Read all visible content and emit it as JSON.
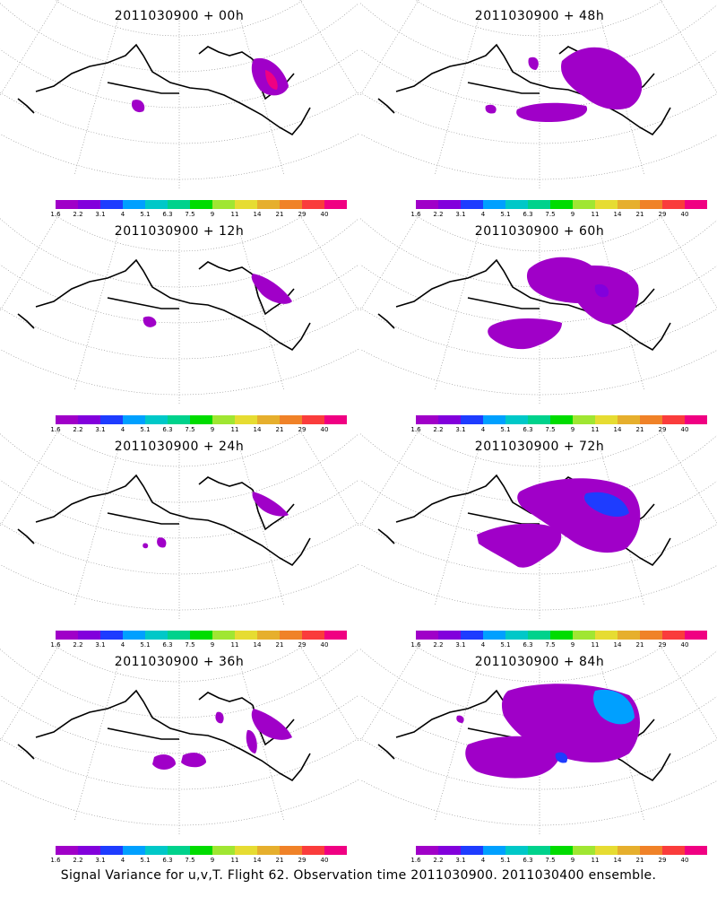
{
  "panels": [
    {
      "title": "2011030900 + 00h",
      "colorbar_ticks": [
        "1.6",
        "2.2",
        "3.1",
        "4",
        "5.1",
        "6.3",
        "7.5",
        "9",
        "11",
        "14",
        "21",
        "29",
        "40"
      ]
    },
    {
      "title": "2011030900 + 48h",
      "colorbar_ticks": [
        "1.6",
        "2.2",
        "3.1",
        "4",
        "5.1",
        "6.3",
        "7.5",
        "9",
        "11",
        "14",
        "21",
        "29",
        "40"
      ]
    },
    {
      "title": "2011030900 + 12h",
      "colorbar_ticks": [
        "1.6",
        "2.2",
        "3.1",
        "4",
        "5.1",
        "6.3",
        "7.5",
        "9",
        "11",
        "14",
        "21",
        "29",
        "40"
      ]
    },
    {
      "title": "2011030900 + 60h",
      "colorbar_ticks": [
        "1.6",
        "2.2",
        "3.1",
        "4",
        "5.1",
        "6.3",
        "7.5",
        "9",
        "11",
        "14",
        "21",
        "29",
        "40"
      ]
    },
    {
      "title": "2011030900 + 24h",
      "colorbar_ticks": [
        "1.6",
        "2.2",
        "3.1",
        "4",
        "5.1",
        "6.3",
        "7.5",
        "9",
        "11",
        "14",
        "21",
        "29",
        "40"
      ]
    },
    {
      "title": "2011030900 + 72h",
      "colorbar_ticks": [
        "1.6",
        "2.2",
        "3.1",
        "4",
        "5.1",
        "6.3",
        "7.5",
        "9",
        "11",
        "14",
        "21",
        "29",
        "40"
      ]
    },
    {
      "title": "2011030900 + 36h",
      "colorbar_ticks": [
        "1.6",
        "2.2",
        "3.1",
        "4",
        "5.1",
        "6.3",
        "7.5",
        "9",
        "11",
        "14",
        "21",
        "29",
        "40"
      ]
    },
    {
      "title": "2011030900 + 84h",
      "colorbar_ticks": [
        "1.6",
        "2.2",
        "3.1",
        "4",
        "5.1",
        "6.3",
        "7.5",
        "9",
        "11",
        "14",
        "21",
        "29",
        "40"
      ]
    }
  ],
  "colorbar_colors": [
    "#a000c8",
    "#8200dc",
    "#1e3cff",
    "#00a0ff",
    "#00c8c8",
    "#00d28c",
    "#00dc00",
    "#a0e632",
    "#e6dc32",
    "#e6af2d",
    "#f08228",
    "#fa3c3c",
    "#f00082"
  ],
  "footer": "Signal Variance for u,v,T. Flight 62. Observation time 2011030900. 2011030400 ensemble."
}
